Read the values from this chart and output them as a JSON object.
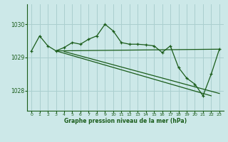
{
  "title": "Graphe pression niveau de la mer (hPa)",
  "background_color": "#cce8e8",
  "grid_color": "#aacfcf",
  "line_color": "#1a5c1a",
  "xlim": [
    -0.5,
    23.5
  ],
  "ylim": [
    1027.4,
    1030.6
  ],
  "yticks": [
    1028,
    1029,
    1030
  ],
  "xticks": [
    0,
    1,
    2,
    3,
    4,
    5,
    6,
    7,
    8,
    9,
    10,
    11,
    12,
    13,
    14,
    15,
    16,
    17,
    18,
    19,
    20,
    21,
    22,
    23
  ],
  "main_line": {
    "x": [
      0,
      1,
      2,
      3,
      4,
      5,
      6,
      7,
      8,
      9,
      10,
      11,
      12,
      13,
      14,
      15,
      16,
      17,
      18,
      19,
      20,
      21,
      22,
      23
    ],
    "y": [
      1029.2,
      1029.65,
      1029.35,
      1029.2,
      1029.3,
      1029.45,
      1029.4,
      1029.55,
      1029.65,
      1030.0,
      1029.8,
      1029.45,
      1029.4,
      1029.4,
      1029.38,
      1029.35,
      1029.15,
      1029.35,
      1028.7,
      1028.38,
      1028.2,
      1027.85,
      1028.5,
      1029.25
    ]
  },
  "line_top": {
    "x": [
      3,
      23
    ],
    "y": [
      1029.2,
      1029.25
    ]
  },
  "line_bottom": {
    "x": [
      3,
      22
    ],
    "y": [
      1029.2,
      1027.85
    ]
  },
  "line_mid": {
    "x": [
      4,
      23
    ],
    "y": [
      1029.18,
      1027.92
    ]
  }
}
